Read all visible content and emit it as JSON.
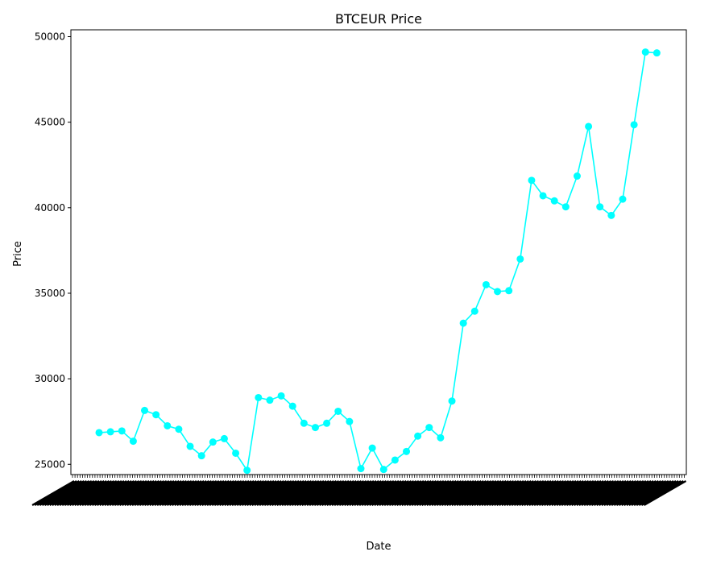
{
  "chart_data": {
    "type": "line",
    "title": "BTCEUR Price",
    "xlabel": "Date",
    "ylabel": "Price",
    "ylim": [
      24400,
      50400
    ],
    "yticks": [
      25000,
      30000,
      35000,
      40000,
      45000,
      50000
    ],
    "grid": false,
    "legend": "none",
    "line_color": "#00ffff",
    "x_tick_labels_note": "dense overlapping rotated date labels (illegible)",
    "series": [
      {
        "values": [
          26850,
          26900,
          26950,
          26350,
          28150,
          27900,
          27250,
          27050,
          26050,
          25500,
          26300,
          26500,
          25650,
          24650,
          28900,
          28750,
          29000,
          28400,
          27400,
          27150,
          27400,
          28100,
          27500,
          24750,
          25950,
          24700,
          25250,
          25750,
          26650,
          27150,
          26550,
          28700,
          33250,
          33950,
          35500,
          35100,
          35150,
          37000,
          41600,
          40700,
          40400,
          40050,
          41850,
          44750,
          40050,
          39550,
          40500,
          44850,
          49100,
          49050
        ]
      }
    ]
  }
}
